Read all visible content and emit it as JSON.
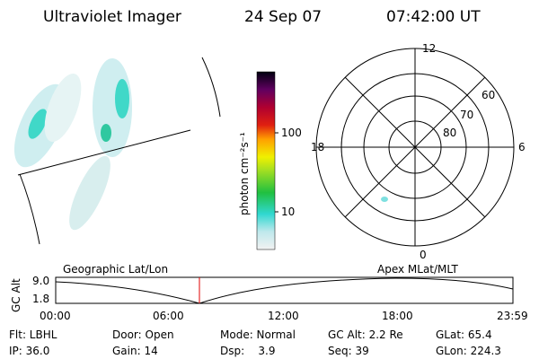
{
  "header": {
    "title": "Ultraviolet Imager",
    "date": "24 Sep 07",
    "time": "07:42:00 UT"
  },
  "colorbar": {
    "label": "photon cm⁻²s⁻¹",
    "ticks": [
      "100",
      "10"
    ]
  },
  "polar": {
    "mlt_labels": [
      "12",
      "18",
      "6",
      "0"
    ],
    "lat_labels": [
      "60",
      "70",
      "80"
    ]
  },
  "plot": {
    "y_label": "GC Alt",
    "yticks": [
      "9.0",
      "1.8"
    ],
    "left_title": "Geographic Lat/Lon",
    "right_title": "Apex MLat/MLT",
    "xticks": [
      "00:00",
      "06:00",
      "12:00",
      "18:00",
      "23:59"
    ]
  },
  "footer": {
    "rows": [
      [
        "Flt: LBHL",
        "Door: Open",
        "Mode: Normal",
        "GC Alt: 2.2 Re",
        "GLat: 65.4"
      ],
      [
        "IP: 36.0",
        "Gain: 14",
        "Dsp:    3.9",
        "Seq: 39",
        "GLon: 224.3"
      ]
    ]
  }
}
